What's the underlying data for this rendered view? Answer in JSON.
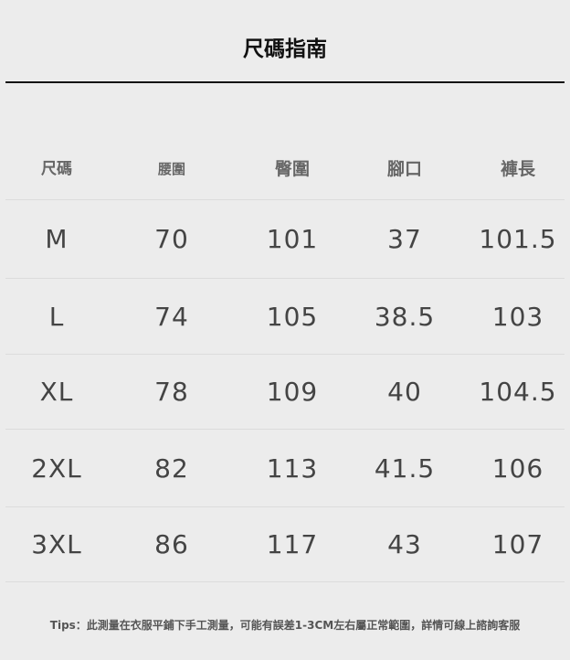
{
  "title": "尺碼指南",
  "headers": [
    "尺碼",
    "腰圍",
    "臀圍",
    "腳口",
    "褲長"
  ],
  "rows": [
    [
      "M",
      "70",
      "101",
      "37",
      "101.5"
    ],
    [
      "L",
      "74",
      "105",
      "38.5",
      "103"
    ],
    [
      "XL",
      "78",
      "109",
      "40",
      "104.5"
    ],
    [
      "2XL",
      "82",
      "113",
      "41.5",
      "106"
    ],
    [
      "3XL",
      "86",
      "117",
      "43",
      "107"
    ]
  ],
  "tips": "Tips：此測量在衣服平鋪下手工測量，可能有誤差1-3CM左右屬正常範圍，詳情可線上諮詢客服"
}
